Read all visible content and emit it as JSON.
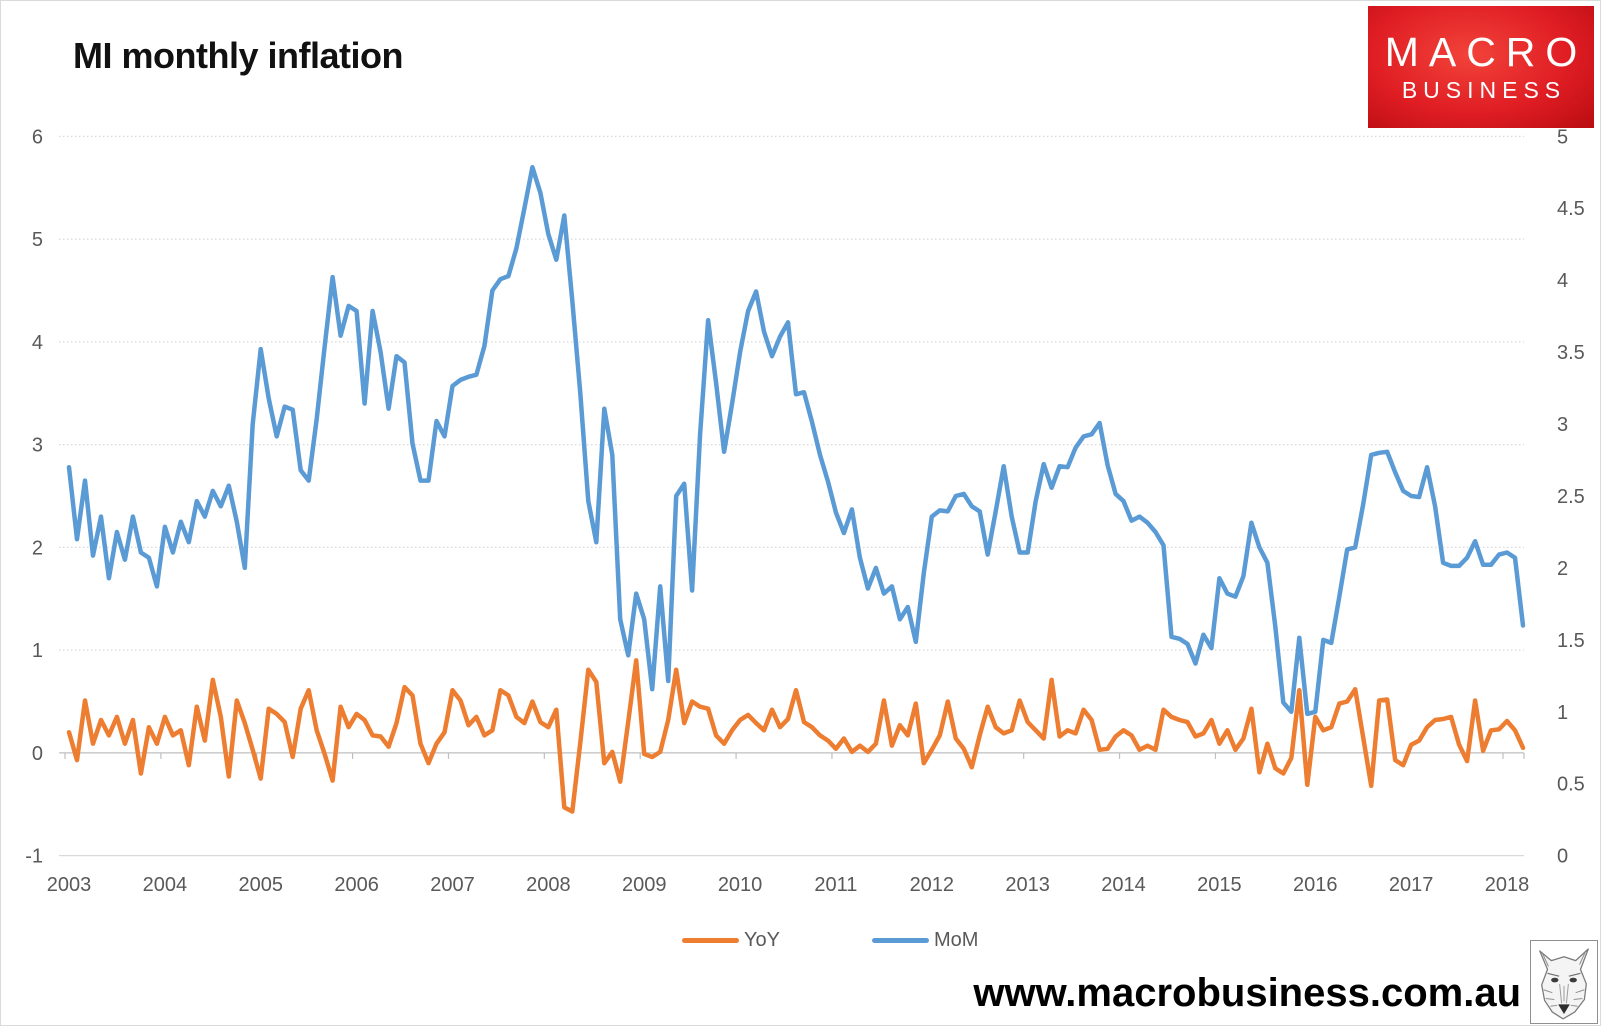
{
  "title": "MI monthly inflation",
  "logo": {
    "line1": "MACRO",
    "line2": "BUSINESS",
    "bg_color": "#e01e24",
    "bg_color_light": "#f2433a",
    "bg_color_dark": "#b90c11"
  },
  "footer": {
    "url": "www.macrobusiness.com.au"
  },
  "legend": [
    {
      "label": "YoY",
      "color": "#ED7D31"
    },
    {
      "label": "MoM",
      "color": "#5B9BD5"
    }
  ],
  "icons": {
    "wolf": "wolf-sketch-logo"
  },
  "colors": {
    "line_mom": "#5B9BD5",
    "line_yoy": "#ED7D31",
    "gridline": "#d9d9d9",
    "zero_axis": "#bfbfbf",
    "axis_text": "#595959",
    "title_text": "#111111"
  },
  "chart_data": {
    "type": "line",
    "title": "MI monthly inflation",
    "x_start": "2003-01",
    "x_end": "2018-03",
    "months_total": 183,
    "x_tick_labels": [
      "2003",
      "2004",
      "2005",
      "2006",
      "2007",
      "2008",
      "2009",
      "2010",
      "2011",
      "2012",
      "2013",
      "2014",
      "2015",
      "2016",
      "2017",
      "2018"
    ],
    "left_axis": {
      "range": [
        -1,
        6
      ],
      "ticks": [
        "6",
        "5",
        "4",
        "3",
        "2",
        "1",
        "0",
        "-1"
      ],
      "tick_values": [
        6,
        5,
        4,
        3,
        2,
        1,
        0,
        -1
      ]
    },
    "right_axis": {
      "range": [
        0,
        5
      ],
      "ticks": [
        "5",
        "4.5",
        "4",
        "3.5",
        "3",
        "2.5",
        "2",
        "1.5",
        "1",
        "0.5",
        "0"
      ],
      "tick_values": [
        5,
        4.5,
        4,
        3.5,
        3,
        2.5,
        2,
        1.5,
        1,
        0.5,
        0
      ]
    },
    "grid": true,
    "legend_position": "bottom",
    "series": [
      {
        "name": "YoY",
        "color": "#ED7D31",
        "axis": "left",
        "values": [
          0.2,
          -0.07,
          0.51,
          0.09,
          0.32,
          0.17,
          0.35,
          0.09,
          0.32,
          -0.2,
          0.25,
          0.09,
          0.35,
          0.17,
          0.22,
          -0.12,
          0.45,
          0.12,
          0.71,
          0.35,
          -0.23,
          0.51,
          0.29,
          0.03,
          -0.25,
          0.43,
          0.38,
          0.3,
          -0.04,
          0.43,
          0.61,
          0.22,
          -0.01,
          -0.27,
          0.45,
          0.25,
          0.38,
          0.32,
          0.17,
          0.16,
          0.06,
          0.29,
          0.64,
          0.56,
          0.09,
          -0.1,
          0.09,
          0.2,
          0.61,
          0.51,
          0.27,
          0.35,
          0.17,
          0.22,
          0.61,
          0.56,
          0.35,
          0.29,
          0.5,
          0.3,
          0.25,
          0.42,
          -0.53,
          -0.57,
          0.1,
          0.81,
          0.69,
          -0.1,
          0.01,
          -0.28,
          0.3,
          0.9,
          -0.01,
          -0.04,
          0.01,
          0.32,
          0.81,
          0.29,
          0.5,
          0.45,
          0.43,
          0.17,
          0.09,
          0.22,
          0.32,
          0.37,
          0.29,
          0.22,
          0.42,
          0.25,
          0.33,
          0.61,
          0.3,
          0.25,
          0.17,
          0.12,
          0.04,
          0.14,
          0.01,
          0.07,
          0.01,
          0.09,
          0.51,
          0.07,
          0.27,
          0.17,
          0.48,
          -0.1,
          0.03,
          0.17,
          0.5,
          0.14,
          0.04,
          -0.14,
          0.17,
          0.45,
          0.25,
          0.19,
          0.22,
          0.51,
          0.3,
          0.22,
          0.14,
          0.71,
          0.16,
          0.22,
          0.19,
          0.42,
          0.32,
          0.03,
          0.04,
          0.16,
          0.22,
          0.17,
          0.03,
          0.07,
          0.03,
          0.42,
          0.35,
          0.32,
          0.3,
          0.16,
          0.19,
          0.32,
          0.09,
          0.22,
          0.03,
          0.14,
          0.43,
          -0.19,
          0.09,
          -0.15,
          -0.2,
          -0.05,
          0.61,
          -0.31,
          0.35,
          0.22,
          0.25,
          0.48,
          0.5,
          0.62,
          0.15,
          -0.32,
          0.51,
          0.52,
          -0.07,
          -0.12,
          0.08,
          0.12,
          0.25,
          0.32,
          0.33,
          0.35,
          0.08,
          -0.08,
          0.51,
          0.02,
          0.22,
          0.23,
          0.31,
          0.22,
          0.05
        ]
      },
      {
        "name": "MoM",
        "color": "#5B9BD5",
        "axis": "left",
        "values": [
          2.78,
          2.08,
          2.65,
          1.92,
          2.3,
          1.7,
          2.15,
          1.88,
          2.3,
          1.95,
          1.9,
          1.62,
          2.2,
          1.95,
          2.25,
          2.05,
          2.45,
          2.3,
          2.55,
          2.4,
          2.6,
          2.25,
          1.8,
          3.2,
          3.93,
          3.45,
          3.08,
          3.37,
          3.34,
          2.75,
          2.65,
          3.25,
          3.95,
          4.63,
          4.06,
          4.35,
          4.3,
          3.4,
          4.3,
          3.9,
          3.35,
          3.86,
          3.8,
          3.01,
          2.65,
          2.65,
          3.23,
          3.08,
          3.57,
          3.63,
          3.66,
          3.68,
          3.96,
          4.5,
          4.61,
          4.64,
          4.91,
          5.3,
          5.7,
          5.45,
          5.05,
          4.8,
          5.23,
          4.4,
          3.5,
          2.45,
          2.05,
          3.35,
          2.9,
          1.3,
          0.95,
          1.55,
          1.3,
          0.62,
          1.62,
          0.7,
          2.5,
          2.62,
          1.58,
          3.1,
          4.21,
          3.6,
          2.93,
          3.4,
          3.9,
          4.3,
          4.49,
          4.1,
          3.86,
          4.05,
          4.19,
          3.49,
          3.51,
          3.22,
          2.9,
          2.64,
          2.34,
          2.14,
          2.37,
          1.9,
          1.6,
          1.8,
          1.55,
          1.62,
          1.3,
          1.42,
          1.08,
          1.75,
          2.3,
          2.36,
          2.35,
          2.5,
          2.52,
          2.4,
          2.35,
          1.93,
          2.35,
          2.79,
          2.3,
          1.95,
          1.95,
          2.45,
          2.81,
          2.58,
          2.79,
          2.78,
          2.97,
          3.08,
          3.1,
          3.21,
          2.8,
          2.52,
          2.45,
          2.26,
          2.3,
          2.24,
          2.15,
          2.02,
          1.13,
          1.11,
          1.06,
          0.87,
          1.15,
          1.02,
          1.7,
          1.55,
          1.52,
          1.72,
          2.24,
          2.0,
          1.85,
          1.23,
          0.49,
          0.4,
          1.12,
          0.38,
          0.4,
          1.1,
          1.07,
          1.52,
          1.98,
          2.0,
          2.42,
          2.9,
          2.92,
          2.93,
          2.73,
          2.55,
          2.5,
          2.49,
          2.78,
          2.4,
          1.85,
          1.82,
          1.82,
          1.9,
          2.06,
          1.83,
          1.83,
          1.93,
          1.95,
          1.9,
          1.24
        ]
      }
    ]
  }
}
